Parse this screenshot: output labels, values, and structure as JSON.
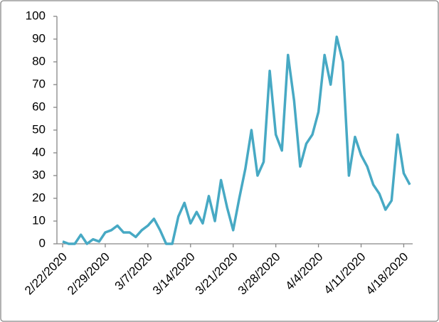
{
  "chart_data": {
    "type": "line",
    "categories": [
      "2/22/2020",
      null,
      null,
      null,
      null,
      null,
      null,
      "2/29/2020",
      null,
      null,
      null,
      null,
      null,
      null,
      "3/7/2020",
      null,
      null,
      null,
      null,
      null,
      null,
      "3/14/2020",
      null,
      null,
      null,
      null,
      null,
      null,
      "3/21/2020",
      null,
      null,
      null,
      null,
      null,
      null,
      "3/28/2020",
      null,
      null,
      null,
      null,
      null,
      null,
      "4/4/2020",
      null,
      null,
      null,
      null,
      null,
      null,
      "4/11/2020",
      null,
      null,
      null,
      null,
      null,
      null,
      "4/18/2020",
      null
    ],
    "series": [
      {
        "color": "#47a9c4",
        "values": [
          1,
          0,
          0,
          4,
          0,
          2,
          1,
          5,
          6,
          8,
          5,
          5,
          3,
          6,
          8,
          11,
          6,
          0,
          0,
          12,
          18,
          9,
          14,
          9,
          21,
          10,
          28,
          16,
          6,
          20,
          33,
          50,
          30,
          36,
          76,
          48,
          41,
          83,
          63,
          34,
          44,
          48,
          58,
          83,
          70,
          91,
          80,
          30,
          47,
          39,
          34,
          26,
          22,
          15,
          19,
          48,
          31,
          26
        ]
      }
    ],
    "ylim": [
      0,
      100
    ],
    "yticks": [
      0,
      10,
      20,
      30,
      40,
      50,
      60,
      70,
      80,
      90,
      100
    ]
  }
}
